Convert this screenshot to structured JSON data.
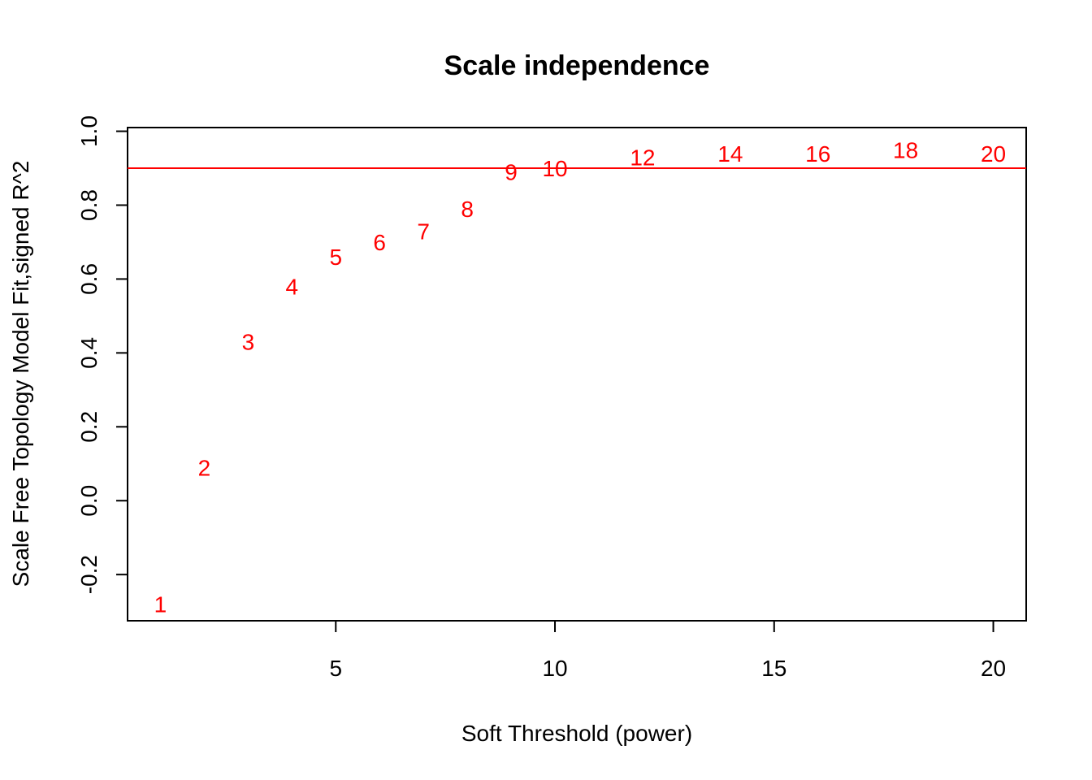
{
  "chart_data": {
    "type": "scatter",
    "title": "Scale independence",
    "xlabel": "Soft Threshold (power)",
    "ylabel": "Scale Free Topology Model Fit,signed R^2",
    "xlim": [
      0.25,
      20.75
    ],
    "ylim": [
      -0.325,
      1.01
    ],
    "x_ticks": [
      5,
      10,
      15,
      20
    ],
    "x_tick_labels": [
      "5",
      "10",
      "15",
      "20"
    ],
    "y_ticks": [
      -0.2,
      0.0,
      0.2,
      0.4,
      0.6,
      0.8,
      1.0
    ],
    "y_tick_labels": [
      "-0.2",
      "0.0",
      "0.2",
      "0.4",
      "0.6",
      "0.8",
      "1.0"
    ],
    "grid": false,
    "marker": "text labels (power values)",
    "point_color": "#ff0000",
    "series": [
      {
        "x": [
          1,
          2,
          3,
          4,
          5,
          6,
          7,
          8,
          9,
          10,
          12,
          14,
          16,
          18,
          20
        ],
        "values": [
          -0.28,
          0.09,
          0.43,
          0.58,
          0.66,
          0.7,
          0.73,
          0.79,
          0.89,
          0.9,
          0.93,
          0.94,
          0.94,
          0.95,
          0.94
        ],
        "labels": [
          "1",
          "2",
          "3",
          "4",
          "5",
          "6",
          "7",
          "8",
          "9",
          "10",
          "12",
          "14",
          "16",
          "18",
          "20"
        ]
      }
    ],
    "reference_line": {
      "y": 0.9,
      "color": "#ff0000"
    }
  }
}
